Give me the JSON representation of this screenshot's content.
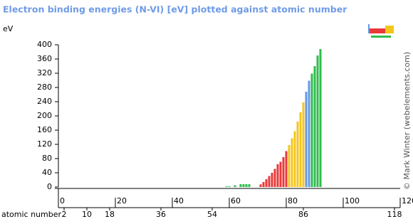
{
  "chart_data": {
    "type": "bar",
    "title": "Electron binding energies (N-VI) [eV] plotted against atomic number",
    "y_label": "eV",
    "x_label": "atomic number",
    "credit": "© Mark Winter (webelements.com)",
    "x": [
      59,
      60,
      62,
      64,
      65,
      66,
      67,
      71,
      72,
      73,
      74,
      75,
      76,
      77,
      78,
      79,
      80,
      81,
      82,
      83,
      84,
      85,
      86,
      87,
      88,
      89,
      90,
      91,
      92
    ],
    "values": [
      2,
      2,
      5,
      8,
      8,
      8,
      8,
      7.5,
      14,
      22,
      31,
      40,
      51,
      64,
      71,
      84,
      101,
      118,
      137,
      157,
      184,
      210,
      238,
      268,
      299,
      319,
      340,
      370,
      388
    ],
    "colors": [
      "#2ebd4e",
      "#2ebd4e",
      "#2ebd4e",
      "#2ebd4e",
      "#2ebd4e",
      "#2ebd4e",
      "#2ebd4e",
      "#e8393a",
      "#e8393a",
      "#e8393a",
      "#e8393a",
      "#e8393a",
      "#e8393a",
      "#e8393a",
      "#e8393a",
      "#e8393a",
      "#e8393a",
      "#f4c61c",
      "#f4c61c",
      "#f4c61c",
      "#f4c61c",
      "#f4c61c",
      "#f4c61c",
      "#6598e6",
      "#6598e6",
      "#2ebd4e",
      "#2ebd4e",
      "#2ebd4e",
      "#2ebd4e"
    ],
    "xlim": [
      0,
      120
    ],
    "xticks": [
      0,
      20,
      40,
      60,
      80,
      100,
      120
    ],
    "ylim": [
      0,
      400
    ],
    "yticks": [
      0,
      40,
      80,
      120,
      160,
      200,
      240,
      280,
      320,
      360,
      400
    ],
    "noble_gas_ticks": [
      2,
      10,
      18,
      36,
      54,
      86,
      118
    ]
  }
}
